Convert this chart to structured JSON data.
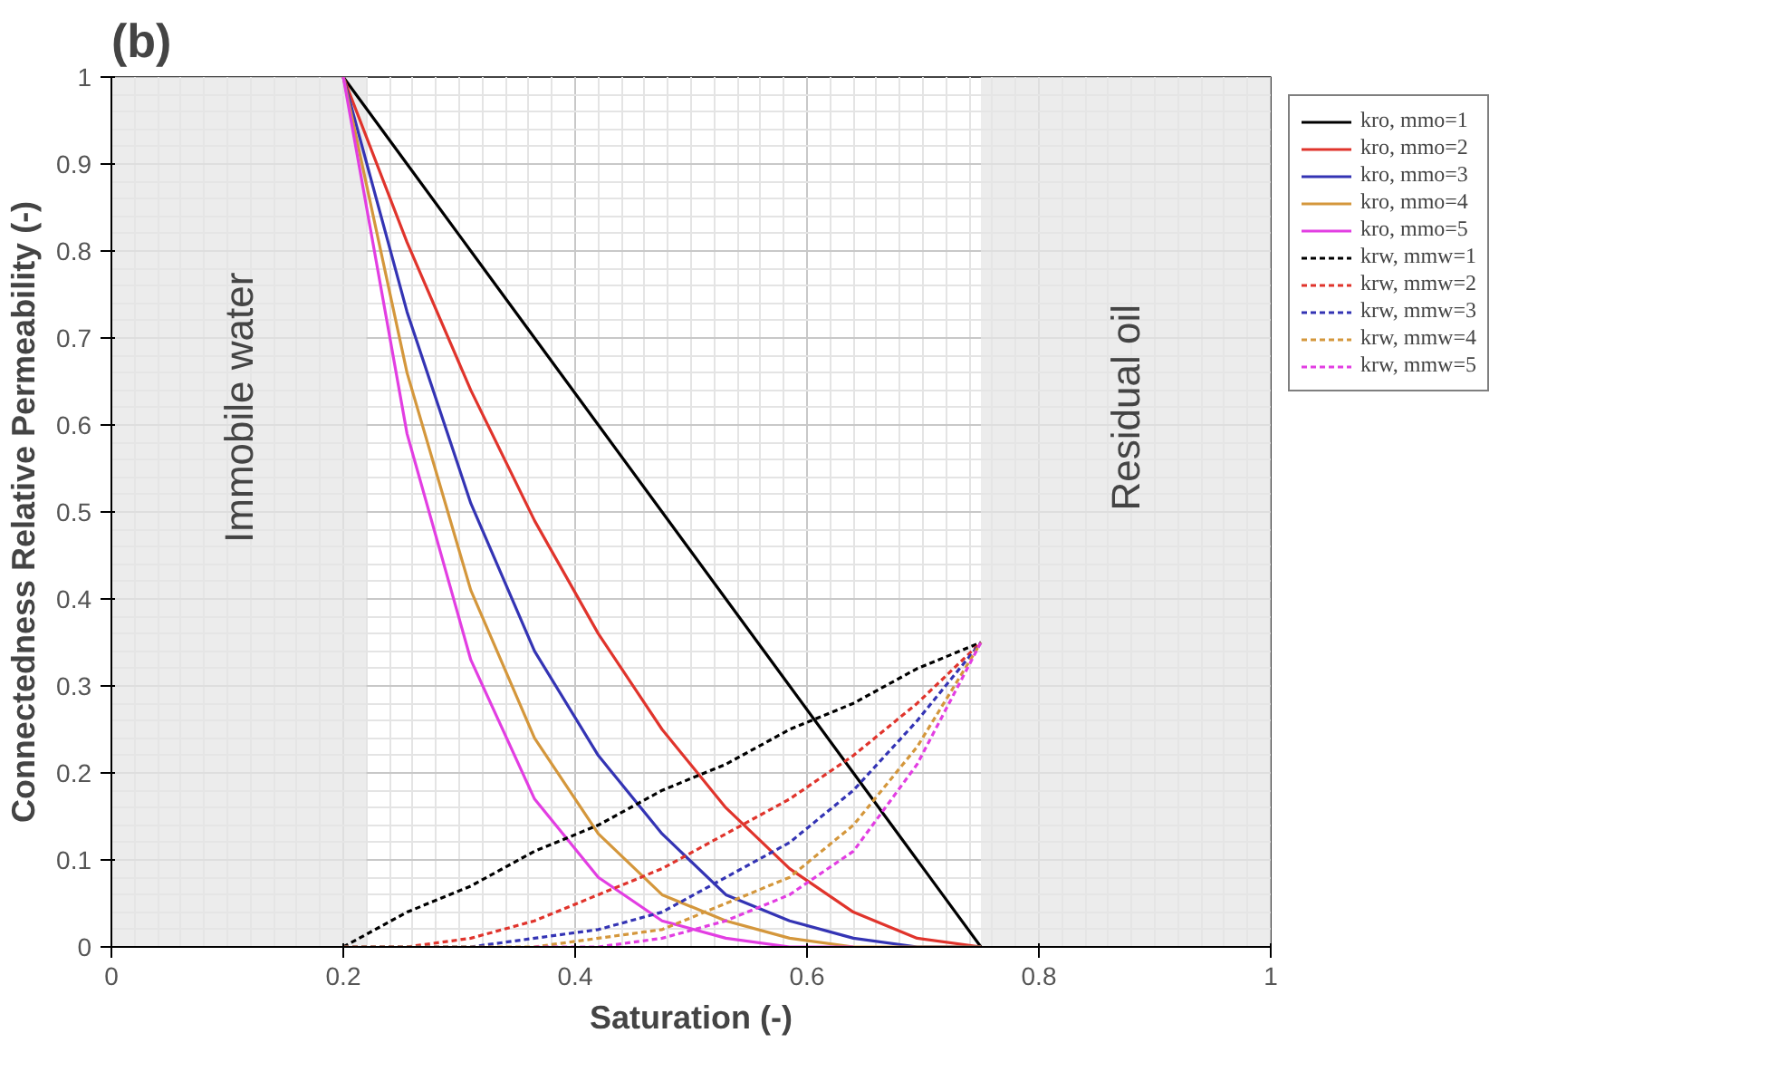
{
  "chart_data": {
    "type": "line",
    "title": "(b)",
    "xlabel": "Saturation (-)",
    "ylabel": "Connectedness Relative Permeability (-)",
    "x": [
      0.2,
      0.255,
      0.31,
      0.365,
      0.42,
      0.475,
      0.53,
      0.585,
      0.64,
      0.695,
      0.75
    ],
    "xlim": [
      0,
      1
    ],
    "ylim": [
      0,
      1
    ],
    "xticks": [
      0,
      0.2,
      0.4,
      0.6,
      0.8,
      1
    ],
    "yticks": [
      0,
      0.1,
      0.2,
      0.3,
      0.4,
      0.5,
      0.6,
      0.7,
      0.8,
      0.9,
      1
    ],
    "grid": true,
    "legend": "top right",
    "marker": "none",
    "bands": [
      {
        "axis": "x",
        "from": 0,
        "to": 0.22,
        "label": "Immobile water",
        "color": "#e6e6e6"
      },
      {
        "axis": "x",
        "from": 0.75,
        "to": 1,
        "label": "Residual oil",
        "color": "#e6e6e6"
      }
    ],
    "series": [
      {
        "name": "kro, mmo=1",
        "color": "#000000",
        "line_style": "solid",
        "values": [
          1,
          0.9,
          0.8,
          0.7,
          0.6,
          0.5,
          0.4,
          0.3,
          0.2,
          0.1,
          0
        ]
      },
      {
        "name": "kro, mmo=2",
        "color": "#e0342c",
        "line_style": "solid",
        "values": [
          1,
          0.81,
          0.64,
          0.49,
          0.36,
          0.25,
          0.16,
          0.09,
          0.04,
          0.01,
          0
        ]
      },
      {
        "name": "kro, mmo=3",
        "color": "#3434b4",
        "line_style": "solid",
        "values": [
          1,
          0.73,
          0.51,
          0.34,
          0.22,
          0.13,
          0.06,
          0.03,
          0.01,
          0,
          0
        ]
      },
      {
        "name": "kro, mmo=4",
        "color": "#d4973c",
        "line_style": "solid",
        "values": [
          1,
          0.66,
          0.41,
          0.24,
          0.13,
          0.06,
          0.03,
          0.01,
          0,
          0,
          0
        ]
      },
      {
        "name": "kro, mmo=5",
        "color": "#e23ee2",
        "line_style": "solid",
        "values": [
          1,
          0.59,
          0.33,
          0.17,
          0.08,
          0.03,
          0.01,
          0,
          0,
          null,
          null
        ]
      },
      {
        "name": "krw, mmw=1",
        "color": "#000000",
        "line_style": "dashed",
        "values": [
          0,
          0.04,
          0.07,
          0.11,
          0.14,
          0.18,
          0.21,
          0.25,
          0.28,
          0.32,
          0.35
        ]
      },
      {
        "name": "krw, mmw=2",
        "color": "#e0342c",
        "line_style": "dashed",
        "values": [
          0,
          0,
          0.01,
          0.03,
          0.06,
          0.09,
          0.13,
          0.17,
          0.22,
          0.28,
          0.35
        ]
      },
      {
        "name": "krw, mmw=3",
        "color": "#3434b4",
        "line_style": "dashed",
        "values": [
          0,
          0,
          0,
          0.01,
          0.02,
          0.04,
          0.08,
          0.12,
          0.18,
          0.26,
          0.35
        ]
      },
      {
        "name": "krw, mmw=4",
        "color": "#d4973c",
        "line_style": "dashed",
        "values": [
          0,
          0,
          0,
          0,
          0.01,
          0.02,
          0.05,
          0.08,
          0.14,
          0.23,
          0.35
        ]
      },
      {
        "name": "krw, mmw=5",
        "color": "#e23ee2",
        "line_style": "dashed",
        "values": [
          null,
          null,
          null,
          0,
          0,
          0.01,
          0.03,
          0.06,
          0.11,
          0.21,
          0.35
        ]
      }
    ]
  }
}
